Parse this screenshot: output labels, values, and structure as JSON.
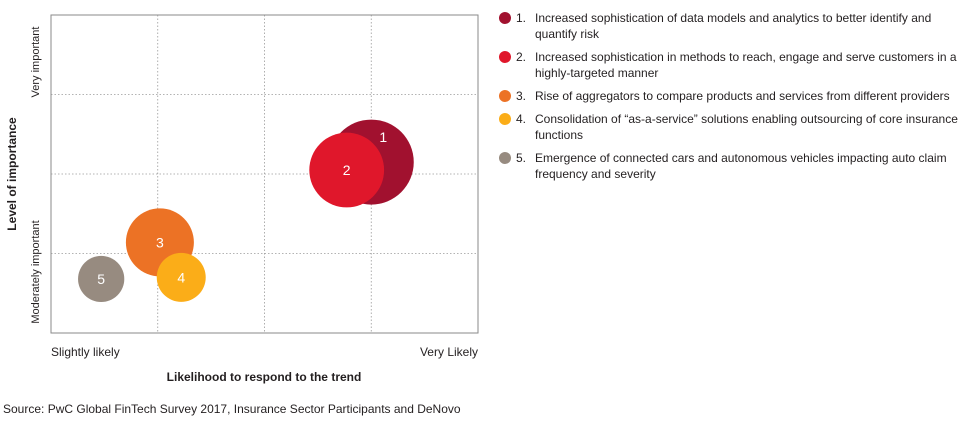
{
  "chart_data": {
    "type": "scatter",
    "xlabel": "Likelihood to respond to the trend",
    "ylabel": "Level of importance",
    "x_tick_labels": [
      "Slightly likely",
      "Very Likely"
    ],
    "y_tick_labels": [
      "Moderately important",
      "Very important"
    ],
    "xlim": [
      0,
      4
    ],
    "ylim": [
      0,
      4
    ],
    "grid": true,
    "legend_position": "right",
    "points": [
      {
        "label": "1",
        "x": 3.0,
        "y": 2.15,
        "size": 1.25,
        "color": "#a1112f"
      },
      {
        "label": "2",
        "x": 2.77,
        "y": 2.05,
        "size": 1.1,
        "color": "#e0172b"
      },
      {
        "label": "3",
        "x": 1.02,
        "y": 1.14,
        "size": 1.0,
        "color": "#ec7225"
      },
      {
        "label": "4",
        "x": 1.22,
        "y": 0.7,
        "size": 0.72,
        "color": "#fbad18"
      },
      {
        "label": "5",
        "x": 0.47,
        "y": 0.68,
        "size": 0.68,
        "color": "#978b80"
      }
    ]
  },
  "legend": [
    {
      "number": "1.",
      "text": "Increased sophistication of data models and analytics to better identify and quantify risk",
      "color": "#a1112f"
    },
    {
      "number": "2.",
      "text": "Increased sophistication in methods to reach, engage and serve customers in a highly-targeted manner",
      "color": "#e0172b"
    },
    {
      "number": "3.",
      "text": "Rise of aggregators to compare products and services from different providers",
      "color": "#ec7225"
    },
    {
      "number": "4.",
      "text": "Consolidation of “as-a-service” solutions enabling outsourcing of core insurance functions",
      "color": "#fbad18"
    },
    {
      "number": "5.",
      "text": "Emergence of connected cars and autonomous vehicles impacting auto claim frequency and severity",
      "color": "#978b80"
    }
  ],
  "source": "Source: PwC Global FinTech Survey 2017, Insurance Sector Participants and DeNovo"
}
